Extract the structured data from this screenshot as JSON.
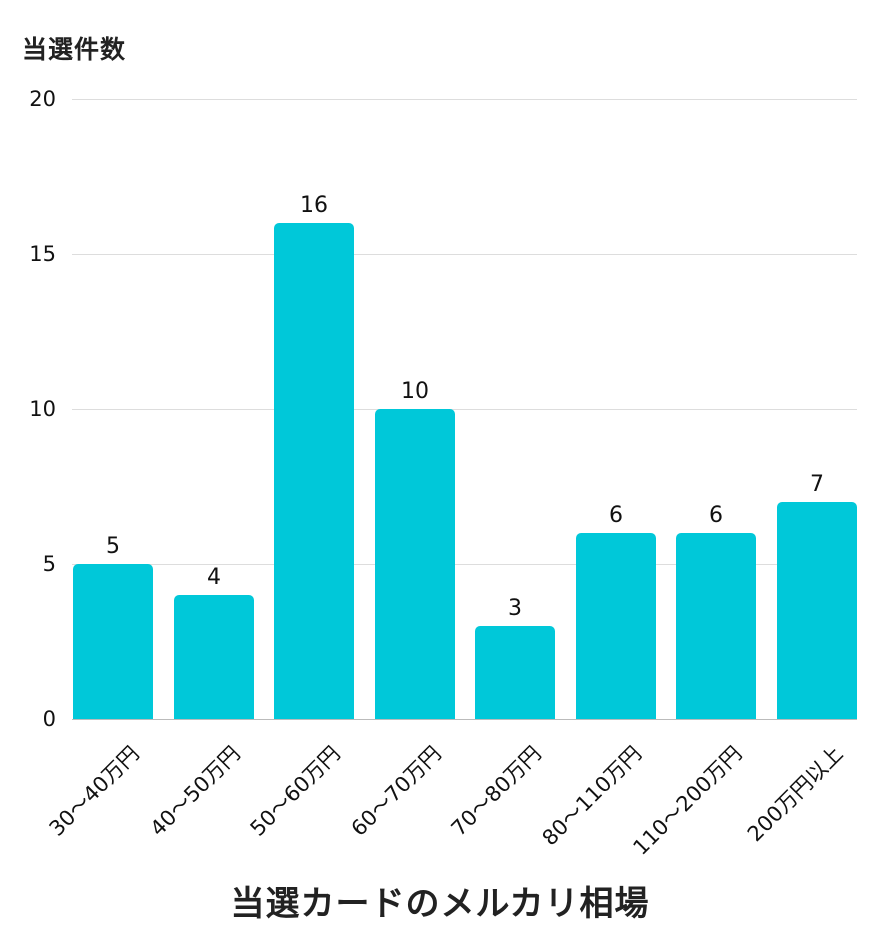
{
  "chart_data": {
    "type": "bar",
    "title": "当選カードのメルカリ相場",
    "xlabel": "当選カードのメルカリ相場",
    "ylabel": "当選件数",
    "categories": [
      "30〜40万円",
      "40〜50万円",
      "50〜60万円",
      "60〜70万円",
      "70〜80万円",
      "80〜110万円",
      "110〜200万円",
      "200万円以上"
    ],
    "values": [
      5,
      4,
      16,
      10,
      3,
      6,
      6,
      7
    ],
    "ylim": [
      0,
      20
    ],
    "yticks": [
      0,
      5,
      10,
      15,
      20
    ],
    "grid": true,
    "legend": null,
    "bar_color": "#00c8d9",
    "data_labels": true
  },
  "axis": {
    "ylabel": "当選件数",
    "yticks": [
      "0",
      "5",
      "10",
      "15",
      "20"
    ]
  },
  "title": "当選カードのメルカリ相場"
}
